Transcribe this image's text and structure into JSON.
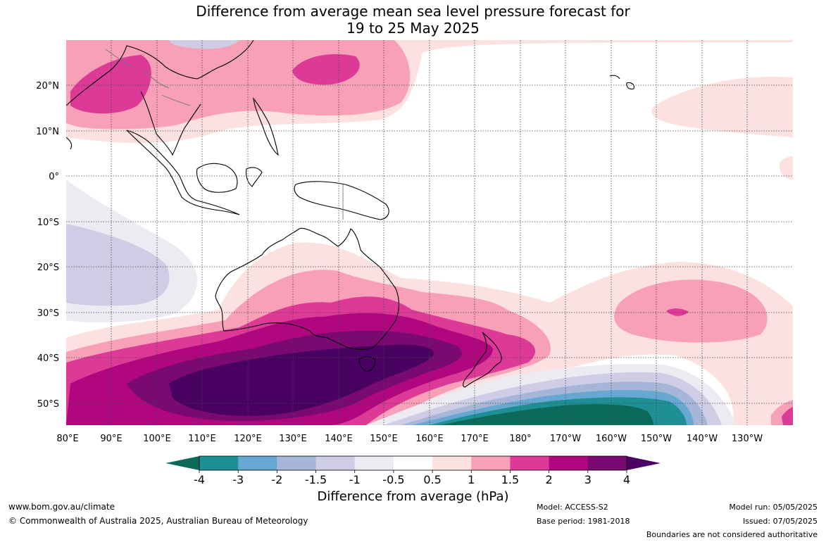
{
  "title": {
    "line1": "Difference from average mean sea level pressure forecast for",
    "line2": "19 to 25 May 2025"
  },
  "map": {
    "lat_labels": [
      "20°N",
      "10°N",
      "0°",
      "10°S",
      "20°S",
      "30°S",
      "40°S",
      "50°S"
    ],
    "lon_labels": [
      "80°E",
      "90°E",
      "100°E",
      "110°E",
      "120°E",
      "130°E",
      "140°E",
      "150°E",
      "160°E",
      "170°E",
      "180°",
      "170°W",
      "160°W",
      "150°W",
      "140°W",
      "130°W"
    ]
  },
  "colorbar": {
    "ticks": [
      "-4",
      "-3",
      "-2",
      "-1.5",
      "-1",
      "-0.5",
      "0.5",
      "1",
      "1.5",
      "2",
      "3",
      "4"
    ],
    "colors": [
      "#0b6a5a",
      "#1e8f94",
      "#66a8d2",
      "#a6b6d8",
      "#cfcde6",
      "#eeeaf2",
      "#ffffff",
      "#fde0e0",
      "#f7a0b8",
      "#dd3a98",
      "#b0077f",
      "#7a0a72",
      "#4a0262"
    ],
    "title": "Difference from average (hPa)"
  },
  "footer": {
    "url": "www.bom.gov.au/climate",
    "copyright": "© Commonwealth of Australia 2025, Australian Bureau of Meteorology",
    "model": "Model: ACCESS-S2",
    "base_period": "Base period: 1981-2018",
    "model_run": "Model run: 05/05/2025",
    "issued": "Issued: 07/05/2025",
    "boundaries": "Boundaries are not considered authoritative"
  }
}
